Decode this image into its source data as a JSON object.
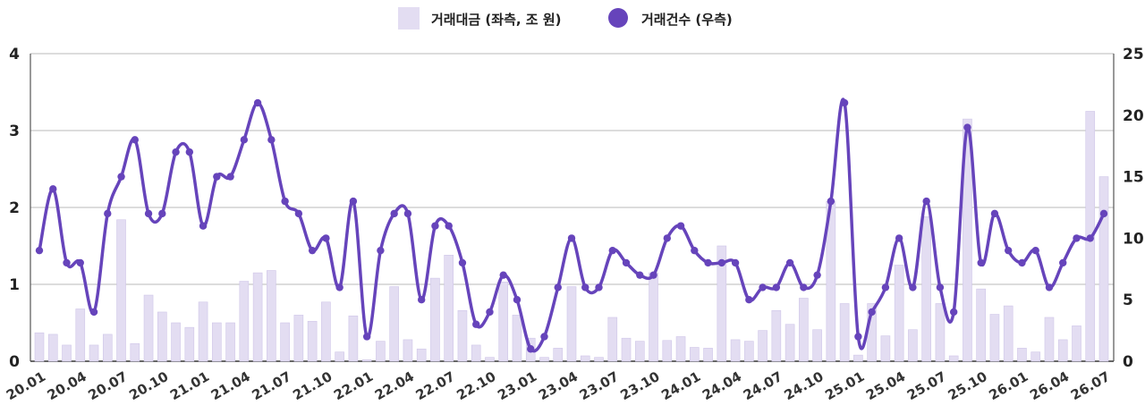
{
  "chart_data": {
    "type": "bar+line",
    "title": "",
    "xlabel": "",
    "ylabel_left": "",
    "ylabel_right": "",
    "ylim_left": [
      0,
      4
    ],
    "ylim_right": [
      0,
      25
    ],
    "yticks_left": [
      "0",
      "1",
      "2",
      "3",
      "4"
    ],
    "yticks_right": [
      "0",
      "5",
      "10",
      "15",
      "20",
      "25"
    ],
    "xtick_labels": [
      "20.01",
      "20.04",
      "20.07",
      "20.10",
      "21.01",
      "21.04",
      "21.07",
      "21.10",
      "22.01",
      "22.04",
      "22.07",
      "22.10",
      "23.01",
      "23.04",
      "23.07",
      "23.10",
      "24.01",
      "24.04",
      "24.07",
      "24.10",
      "25.01",
      "25.04",
      "25.07",
      "25.10",
      "26.01",
      "26.04",
      "26.07"
    ],
    "legend_position": "top-center",
    "grid": "horizontal",
    "series": [
      {
        "name": "거래대금 (좌측, 조 원)",
        "type": "bar",
        "axis": "left",
        "color": "#e3ddf2",
        "values": [
          0.37,
          0.35,
          0.21,
          0.68,
          0.21,
          0.35,
          1.84,
          0.23,
          0.86,
          0.64,
          0.5,
          0.44,
          0.77,
          0.5,
          0.5,
          1.04,
          1.15,
          1.18,
          0.5,
          0.6,
          0.52,
          0.77,
          0.12,
          0.59,
          0.02,
          0.26,
          0.97,
          0.28,
          0.16,
          1.08,
          1.38,
          0.66,
          0.21,
          0.05,
          1.03,
          0.6,
          0.3,
          0.05,
          0.17,
          0.97,
          0.07,
          0.05,
          0.57,
          0.3,
          0.26,
          1.15,
          0.27,
          0.32,
          0.18,
          0.17,
          1.5,
          0.28,
          0.26,
          0.4,
          0.66,
          0.48,
          0.82,
          0.41,
          2.08,
          0.75,
          0.08,
          0.75,
          0.33,
          1.25,
          0.41,
          1.88,
          0.75,
          0.07,
          3.15,
          0.94,
          0.61,
          0.72,
          0.17,
          0.12,
          0.57,
          0.28,
          0.46,
          3.25,
          2.4
        ]
      },
      {
        "name": "거래건수 (우측)",
        "type": "line",
        "axis": "right",
        "color": "#6644bb",
        "values": [
          9,
          14,
          8,
          8,
          4,
          12,
          15,
          18,
          12,
          12,
          17,
          17,
          11,
          15,
          15,
          18,
          21,
          18,
          13,
          12,
          9,
          10,
          6,
          13,
          2,
          9,
          12,
          12,
          5,
          11,
          11,
          8,
          3,
          4,
          7,
          5,
          1,
          2,
          6,
          10,
          6,
          6,
          9,
          8,
          7,
          7,
          10,
          11,
          9,
          8,
          8,
          8,
          5,
          6,
          6,
          8,
          6,
          7,
          13,
          21,
          2,
          4,
          6,
          10,
          6,
          13,
          6,
          4,
          19,
          8,
          12,
          9,
          8,
          9,
          6,
          8,
          10,
          10,
          12
        ]
      }
    ]
  }
}
